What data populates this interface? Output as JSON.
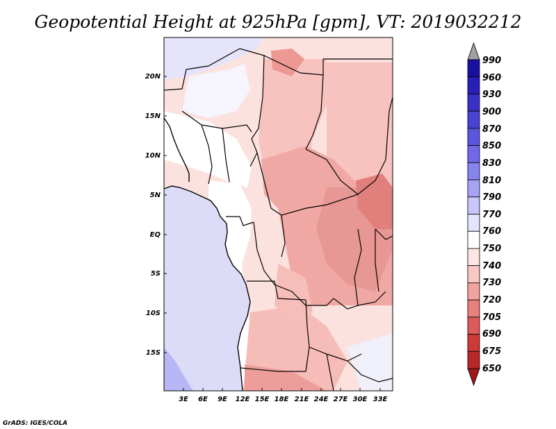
{
  "title": "Geopotential Height at 925hPa [gpm], VT: 2019032212",
  "credit": "GrADS: IGES/COLA",
  "map": {
    "variable": "Geopotential Height",
    "level": "925hPa",
    "units": "gpm",
    "valid_time": "2019032212",
    "lat_labels": [
      "20N",
      "15N",
      "10N",
      "5N",
      "EQ",
      "5S",
      "10S",
      "15S"
    ],
    "lon_labels": [
      "3E",
      "6E",
      "9E",
      "12E",
      "15E",
      "18E",
      "21E",
      "24E",
      "27E",
      "30E",
      "33E"
    ]
  },
  "colorbar": {
    "labels": [
      "990",
      "960",
      "930",
      "900",
      "870",
      "850",
      "830",
      "810",
      "790",
      "770",
      "760",
      "750",
      "740",
      "730",
      "720",
      "705",
      "690",
      "675",
      "650"
    ],
    "colors": [
      "#1a10a0",
      "#2a1fb4",
      "#3a30c4",
      "#4a42d2",
      "#5c56de",
      "#7068e6",
      "#8884ee",
      "#a6a2f4",
      "#c8c6f8",
      "#e4e4fc",
      "#ffffff",
      "#fde6e4",
      "#f8c8c4",
      "#f0a4a0",
      "#e8807e",
      "#dc5a5a",
      "#cc3a3a",
      "#b82828",
      "#a01818"
    ],
    "top_arrow_color": "#a0a0a0"
  }
}
